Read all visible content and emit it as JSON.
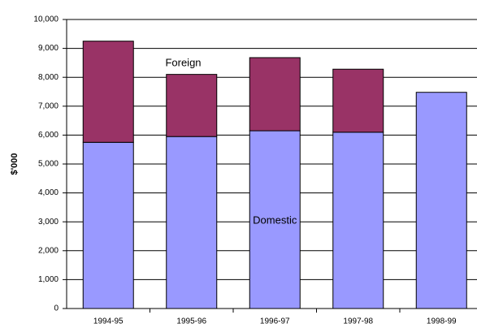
{
  "chart_data": {
    "type": "stacked_bar",
    "ylabel": "$'000",
    "categories": [
      "1994-95",
      "1995-96",
      "1996-97",
      "1997-98",
      "1998-99"
    ],
    "series": [
      {
        "name": "Domestic",
        "color": "#9999ff",
        "values": [
          5750,
          5950,
          6150,
          6100,
          7480
        ]
      },
      {
        "name": "Foreign",
        "color": "#993366",
        "values": [
          3500,
          2150,
          2530,
          2180,
          null
        ]
      }
    ],
    "ylim": [
      0,
      10000
    ],
    "yticks": [
      0,
      {
        "value": 1000,
        "label": "1,000"
      },
      {
        "value": 2000,
        "label": "2,000"
      },
      {
        "value": 3000,
        "label": "3,000"
      },
      {
        "value": 4000,
        "label": "4,000"
      },
      {
        "value": 5000,
        "label": "5,000"
      },
      {
        "value": 6000,
        "label": "6,000"
      },
      {
        "value": 7000,
        "label": "7,000"
      },
      {
        "value": 8000,
        "label": "8,000"
      },
      {
        "value": 9000,
        "label": "9,000"
      },
      {
        "value": 10000,
        "label": "10,000"
      }
    ],
    "grid": true
  }
}
